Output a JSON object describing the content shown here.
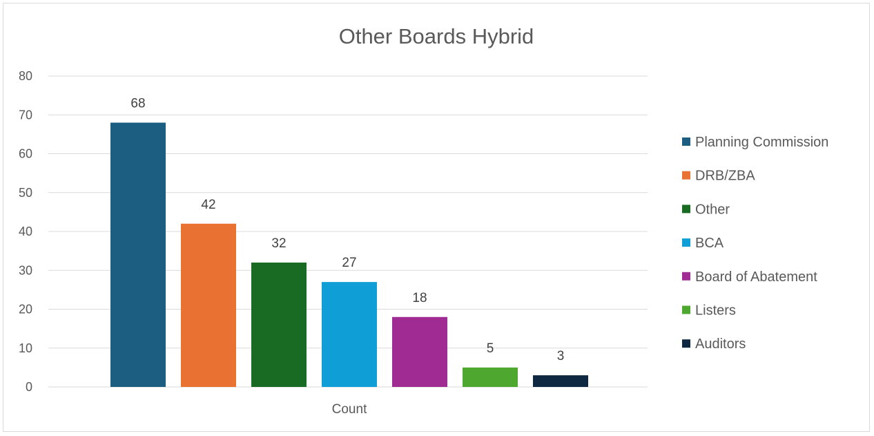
{
  "chart_data": {
    "type": "bar",
    "title": "Other Boards Hybrid",
    "xlabel": "",
    "ylabel": "",
    "categories": [
      "Count"
    ],
    "series": [
      {
        "name": "Planning Commission",
        "values": [
          68
        ],
        "color": "#1b5e82"
      },
      {
        "name": "DRB/ZBA",
        "values": [
          42
        ],
        "color": "#e97132"
      },
      {
        "name": "Other",
        "values": [
          32
        ],
        "color": "#196b24"
      },
      {
        "name": "BCA",
        "values": [
          27
        ],
        "color": "#0f9ed5"
      },
      {
        "name": "Board of Abatement",
        "values": [
          18
        ],
        "color": "#a02b93"
      },
      {
        "name": "Listers",
        "values": [
          5
        ],
        "color": "#4ea72e"
      },
      {
        "name": "Auditors",
        "values": [
          3
        ],
        "color": "#0e2841"
      }
    ],
    "ylim": [
      0,
      80
    ],
    "yticks": [
      0,
      10,
      20,
      30,
      40,
      50,
      60,
      70,
      80
    ],
    "grid": true,
    "legend_position": "right",
    "data_labels": true
  }
}
